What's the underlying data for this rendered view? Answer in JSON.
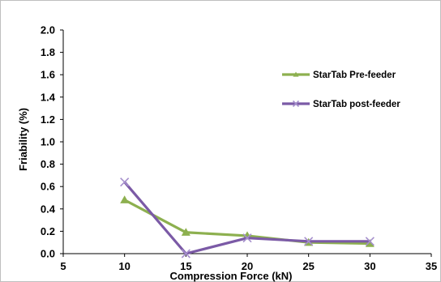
{
  "chart_data": {
    "type": "line",
    "title": "",
    "xlabel": "Compression Force (kN)",
    "ylabel": "Friability (%)",
    "xlim": [
      5,
      35
    ],
    "ylim": [
      0,
      2.0
    ],
    "x_ticks": [
      "5",
      "10",
      "15",
      "20",
      "25",
      "30",
      "35"
    ],
    "y_ticks": [
      "0.0",
      "0.2",
      "0.4",
      "0.6",
      "0.8",
      "1.0",
      "1.2",
      "1.4",
      "1.6",
      "1.8",
      "2.0"
    ],
    "grid": false,
    "legend_position": "right",
    "series": [
      {
        "name": "StarTab Pre-feeder",
        "color": "#8db04f",
        "marker": "triangle",
        "x": [
          10,
          15,
          20,
          25,
          30
        ],
        "y": [
          0.48,
          0.19,
          0.16,
          0.1,
          0.09
        ]
      },
      {
        "name": "StarTab post-feeder",
        "color": "#7b5aa6",
        "marker": "x",
        "x": [
          10,
          15,
          20,
          25,
          30
        ],
        "y": [
          0.64,
          0.0,
          0.14,
          0.11,
          0.11
        ]
      }
    ]
  }
}
